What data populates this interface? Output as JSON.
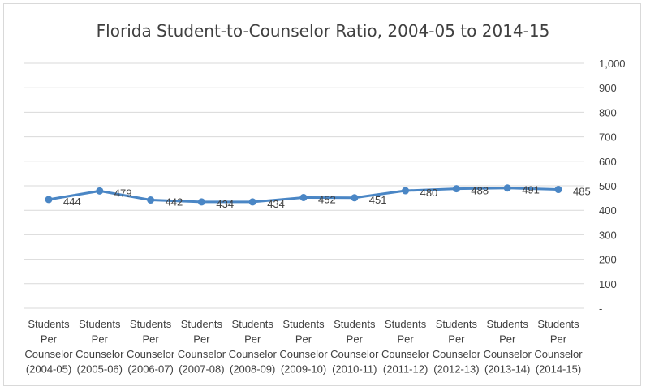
{
  "chart_data": {
    "type": "line",
    "title": "Florida Student-to-Counselor Ratio, 2004-05 to 2014-15",
    "categories": [
      "Students Per Counselor (2004-05)",
      "Students Per Counselor (2005-06)",
      "Students Per Counselor (2006-07)",
      "Students Per Counselor (2007-08)",
      "Students Per Counselor (2008-09)",
      "Students Per Counselor (2009-10)",
      "Students Per Counselor (2010-11)",
      "Students Per Counselor (2011-12)",
      "Students Per Counselor (2012-13)",
      "Students Per Counselor (2013-14)",
      "Students Per Counselor (2014-15)"
    ],
    "category_lines": [
      [
        "Students",
        "Per",
        "Counselor",
        "(2004-05)"
      ],
      [
        "Students",
        "Per",
        "Counselor",
        "(2005-06)"
      ],
      [
        "Students",
        "Per",
        "Counselor",
        "(2006-07)"
      ],
      [
        "Students",
        "Per",
        "Counselor",
        "(2007-08)"
      ],
      [
        "Students",
        "Per",
        "Counselor",
        "(2008-09)"
      ],
      [
        "Students",
        "Per",
        "Counselor",
        "(2009-10)"
      ],
      [
        "Students",
        "Per",
        "Counselor",
        "(2010-11)"
      ],
      [
        "Students",
        "Per",
        "Counselor",
        "(2011-12)"
      ],
      [
        "Students",
        "Per",
        "Counselor",
        "(2012-13)"
      ],
      [
        "Students",
        "Per",
        "Counselor",
        "(2013-14)"
      ],
      [
        "Students",
        "Per",
        "Counselor",
        "(2014-15)"
      ]
    ],
    "values": [
      444,
      479,
      442,
      434,
      434,
      452,
      451,
      480,
      488,
      491,
      485
    ],
    "y_ticks": [
      0,
      100,
      200,
      300,
      400,
      500,
      600,
      700,
      800,
      900,
      1000
    ],
    "y_tick_labels": [
      "-",
      "100",
      "200",
      "300",
      "400",
      "500",
      "600",
      "700",
      "800",
      "900",
      "1,000"
    ],
    "ylim": [
      0,
      1000
    ],
    "y_axis_side": "right",
    "grid": true,
    "legend": "none",
    "data_labels": true,
    "colors": {
      "line": "#4a86c5",
      "marker": "#4a86c5",
      "grid": "#d9d9d9",
      "text": "#404040",
      "frame": "#d9d9d9"
    }
  }
}
